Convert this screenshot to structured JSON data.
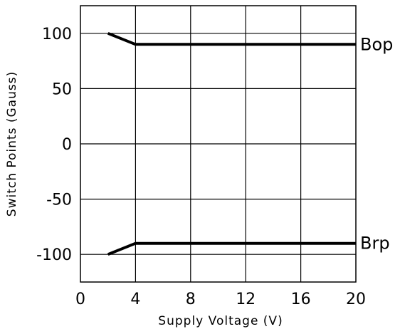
{
  "chart_data": {
    "type": "line",
    "title": "",
    "xlabel": "Supply Voltage (V)",
    "ylabel": "Switch Points (Gauss)",
    "xlim": [
      0,
      20
    ],
    "ylim": [
      -125,
      125
    ],
    "x_ticks": [
      0,
      4,
      8,
      12,
      16,
      20
    ],
    "y_ticks": [
      100,
      50,
      0,
      -50,
      -100
    ],
    "x_tick_labels": [
      "0",
      "4",
      "8",
      "12",
      "16",
      "20"
    ],
    "y_tick_labels": [
      "100",
      "50",
      "0",
      "-50",
      "-100"
    ],
    "grid": true,
    "legend": "inline labels at right end of lines",
    "series": [
      {
        "name": "Bop",
        "x": [
          2,
          4,
          20
        ],
        "y": [
          100,
          90,
          90
        ]
      },
      {
        "name": "Brp",
        "x": [
          2,
          4,
          20
        ],
        "y": [
          -100,
          -90,
          -90
        ]
      }
    ]
  },
  "colors": {
    "background": "#ffffff",
    "line": "#000000",
    "grid": "#000000"
  }
}
